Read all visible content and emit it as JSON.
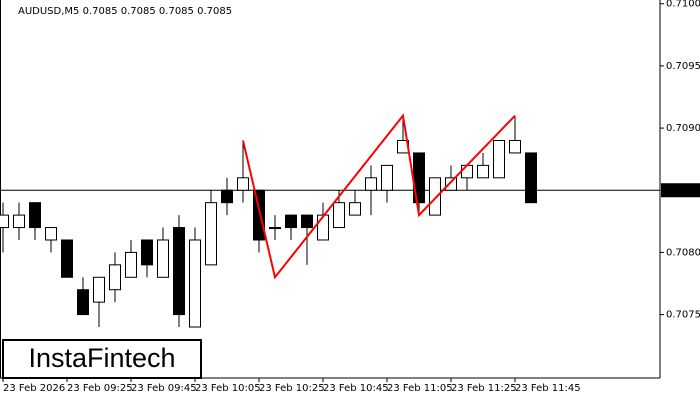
{
  "chart_data": {
    "type": "candlestick",
    "title": "AUDUSD,M5  0.7085 0.7085 0.7085 0.7085",
    "brand": "InstaFintech",
    "categories": [
      "23 Feb 2026",
      null,
      null,
      null,
      "23 Feb 09:25",
      null,
      null,
      null,
      "23 Feb 09:45",
      null,
      null,
      null,
      "23 Feb 10:05",
      null,
      null,
      null,
      "23 Feb 10:25",
      null,
      null,
      null,
      "23 Feb 10:45",
      null,
      null,
      null,
      "23 Feb 11:05",
      null,
      null,
      null,
      "23 Feb 11:25",
      null,
      null,
      null,
      "23 Feb 11:45",
      null
    ],
    "open": [
      0.7082,
      0.7082,
      0.7084,
      0.7081,
      0.7081,
      0.7077,
      0.7076,
      0.7077,
      0.7078,
      0.7081,
      0.7078,
      0.7082,
      0.7074,
      0.7079,
      0.7085,
      0.7085,
      0.7085,
      0.7082,
      0.7083,
      0.7083,
      0.7081,
      0.7082,
      0.7083,
      0.7085,
      0.7085,
      0.7088,
      0.7088,
      0.7083,
      0.7085,
      0.7086,
      0.7086,
      0.7086,
      0.7088,
      0.7088
    ],
    "high": [
      0.7084,
      0.7084,
      0.7084,
      0.7082,
      0.7081,
      0.7078,
      0.7078,
      0.708,
      0.7081,
      0.7081,
      0.7082,
      0.7083,
      0.7082,
      0.7085,
      0.7086,
      0.7089,
      0.7085,
      0.7083,
      0.7083,
      0.7083,
      0.7084,
      0.7085,
      0.7085,
      0.7087,
      0.7087,
      0.7091,
      0.7088,
      0.7086,
      0.7087,
      0.7087,
      0.7088,
      0.7089,
      0.7091,
      0.7088
    ],
    "low": [
      0.708,
      0.7081,
      0.7081,
      0.708,
      0.7078,
      0.7075,
      0.7074,
      0.7076,
      0.7078,
      0.7078,
      0.7078,
      0.7074,
      0.7074,
      0.7079,
      0.7083,
      0.7084,
      0.708,
      0.7081,
      0.7081,
      0.7079,
      0.7081,
      0.7082,
      0.7083,
      0.7083,
      0.7084,
      0.7088,
      0.7083,
      0.7083,
      0.7085,
      0.7085,
      0.7086,
      0.7086,
      0.7088,
      0.7084
    ],
    "close": [
      0.7083,
      0.7083,
      0.7082,
      0.7082,
      0.7078,
      0.7075,
      0.7078,
      0.7079,
      0.708,
      0.7079,
      0.7081,
      0.7075,
      0.7081,
      0.7084,
      0.7084,
      0.7086,
      0.7081,
      0.7082,
      0.7082,
      0.7082,
      0.7083,
      0.7084,
      0.7084,
      0.7086,
      0.7087,
      0.7089,
      0.7084,
      0.7086,
      0.7086,
      0.7087,
      0.7087,
      0.7089,
      0.7089,
      0.7084
    ],
    "up_color": "#ffffff",
    "down_color": "#000000",
    "current_price": {
      "value": 0.7085,
      "label": "0.7085"
    },
    "pattern": {
      "color": "#ff0000",
      "points": [
        [
          15,
          0.7089
        ],
        [
          17,
          0.7078
        ],
        [
          25,
          0.7091
        ],
        [
          26,
          0.7083
        ],
        [
          32,
          0.7091
        ]
      ]
    },
    "ylim": [
      0.70699,
      0.71003
    ],
    "yticks": [
      {
        "value": 0.71,
        "label": "0.7100"
      },
      0.7095,
      {
        "value": 0.709,
        "label": "0.7090"
      },
      {
        "value": 0.708,
        "label": "0.7080"
      },
      0.7075
    ]
  }
}
